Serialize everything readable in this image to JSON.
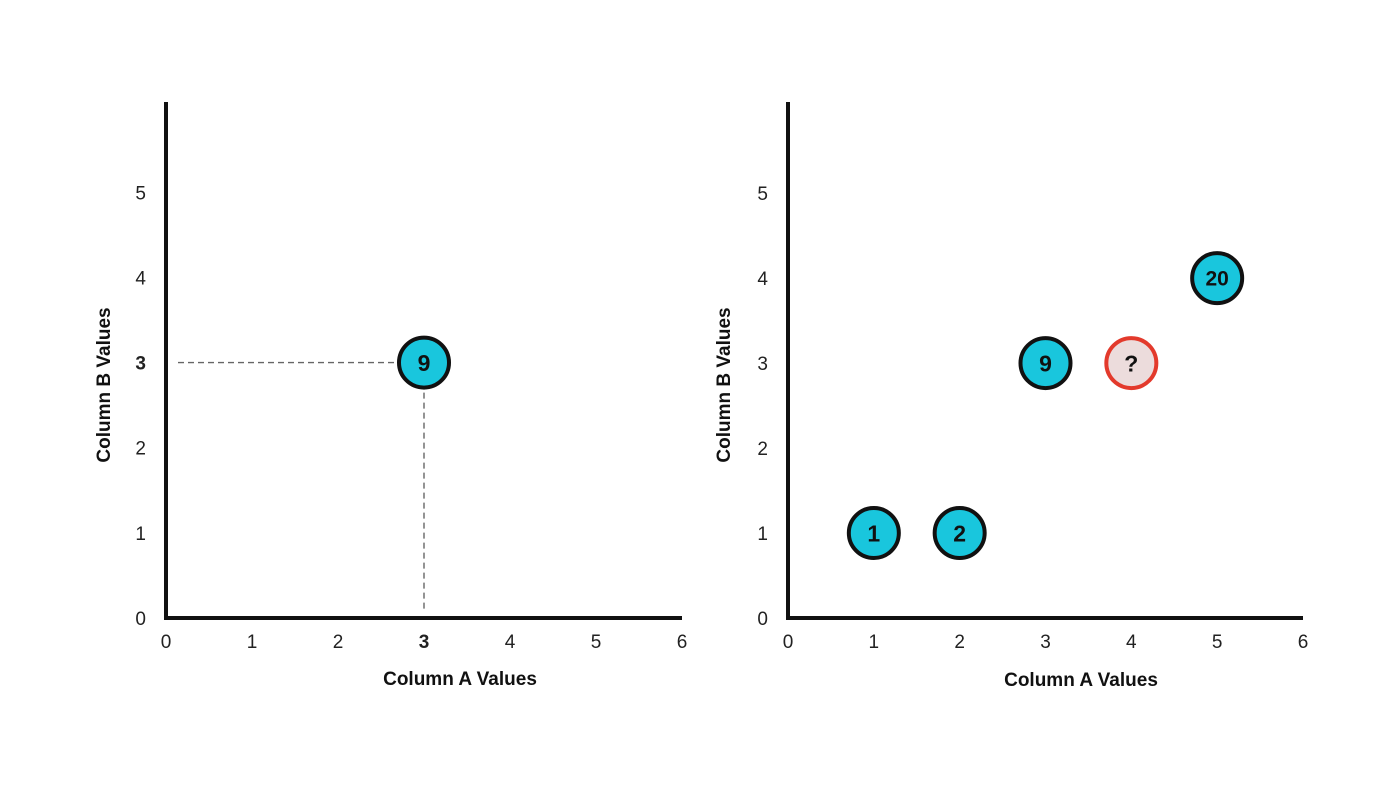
{
  "colors": {
    "axis": "#111111",
    "tick_text": "#222222",
    "highlight": "#e33a2c",
    "point_fill": "#19c6dd",
    "point_stroke": "#111111",
    "unknown_fill": "#ecdcdc",
    "unknown_stroke": "#e33a2c",
    "guide": "#666666"
  },
  "chart_data": [
    {
      "type": "scatter",
      "xlabel": "Column A Values",
      "ylabel": "Column B Values",
      "xlim": [
        0,
        6
      ],
      "ylim": [
        0,
        6
      ],
      "x_ticks": [
        "0",
        "1",
        "2",
        "3",
        "4",
        "5",
        "6"
      ],
      "y_ticks": [
        "0",
        "1",
        "2",
        "3",
        "4",
        "5"
      ],
      "highlight_x_tick": "3",
      "highlight_y_tick": "3",
      "grid": false,
      "guide_lines": true,
      "points": [
        {
          "x": 3,
          "y": 3,
          "label": "9",
          "unknown": false
        }
      ]
    },
    {
      "type": "scatter",
      "xlabel": "Column A Values",
      "ylabel": "Column B Values",
      "xlim": [
        0,
        6
      ],
      "ylim": [
        0,
        6
      ],
      "x_ticks": [
        "0",
        "1",
        "2",
        "3",
        "4",
        "5",
        "6"
      ],
      "y_ticks": [
        "0",
        "1",
        "2",
        "3",
        "4",
        "5"
      ],
      "grid": false,
      "guide_lines": false,
      "points": [
        {
          "x": 1,
          "y": 1,
          "label": "1",
          "unknown": false
        },
        {
          "x": 2,
          "y": 1,
          "label": "2",
          "unknown": false
        },
        {
          "x": 3,
          "y": 3,
          "label": "9",
          "unknown": false
        },
        {
          "x": 4,
          "y": 3,
          "label": "?",
          "unknown": true
        },
        {
          "x": 5,
          "y": 4,
          "label": "20",
          "unknown": false
        }
      ]
    }
  ]
}
